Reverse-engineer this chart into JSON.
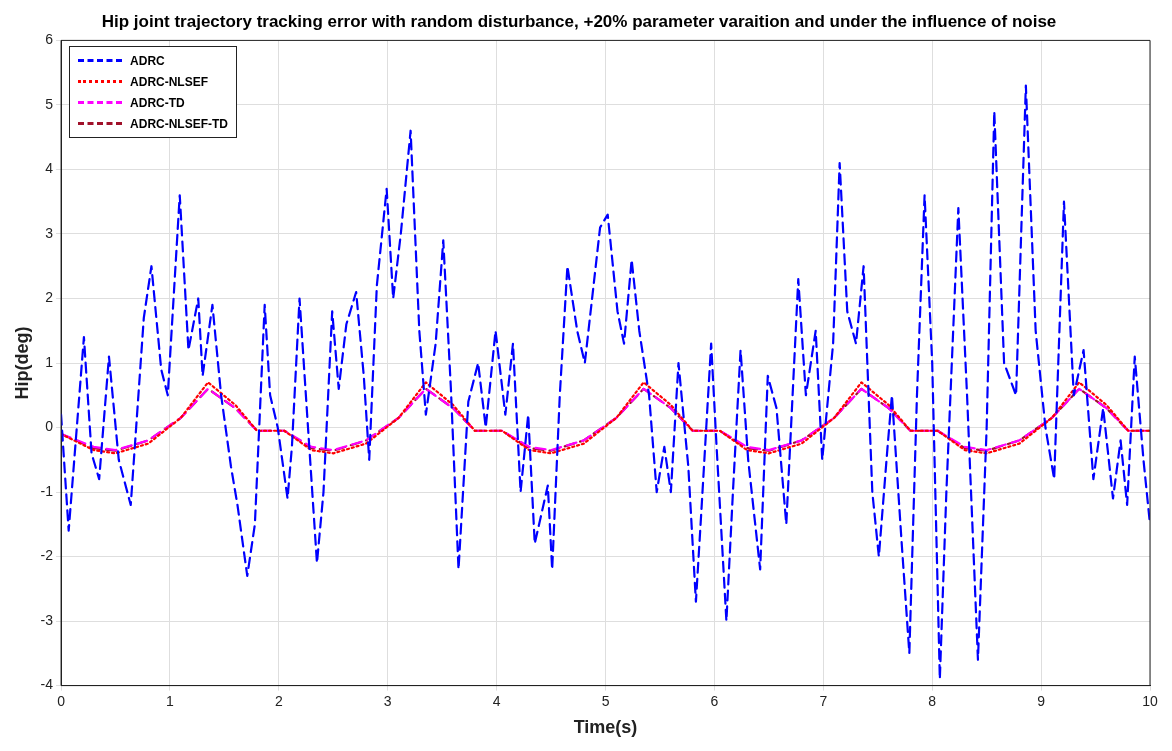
{
  "chart_data": {
    "type": "line",
    "title": "Hip joint trajectory tracking error with random disturbance, +20% parameter varaition and under the influence of noise",
    "xlabel": "Time(s)",
    "ylabel": "Hip(deg)",
    "xlim": [
      0,
      10
    ],
    "xticks": [
      0,
      1,
      2,
      3,
      4,
      5,
      6,
      7,
      8,
      9,
      10
    ],
    "ylim": [
      -4,
      6
    ],
    "yticks": [
      -4,
      -3,
      -2,
      -1,
      0,
      1,
      2,
      3,
      4,
      5,
      6
    ],
    "grid": true,
    "legend": "top left",
    "marker": "none",
    "series": [
      {
        "name": "ADRC",
        "color": "#0000ff",
        "line_style": "dashed",
        "x": [
          0,
          0.07,
          0.21,
          0.28,
          0.35,
          0.44,
          0.53,
          0.64,
          0.76,
          0.83,
          0.92,
          0.98,
          1.09,
          1.17,
          1.26,
          1.3,
          1.39,
          1.47,
          1.56,
          1.62,
          1.71,
          1.78,
          1.87,
          1.92,
          1.99,
          2.08,
          2.12,
          2.19,
          2.26,
          2.35,
          2.41,
          2.49,
          2.55,
          2.62,
          2.71,
          2.78,
          2.83,
          2.9,
          2.99,
          3.05,
          3.12,
          3.21,
          3.29,
          3.35,
          3.44,
          3.51,
          3.58,
          3.65,
          3.74,
          3.83,
          3.9,
          3.99,
          4.08,
          4.15,
          4.22,
          4.29,
          4.35,
          4.47,
          4.51,
          4.58,
          4.65,
          4.74,
          4.81,
          4.95,
          5.02,
          5.11,
          5.17,
          5.24,
          5.31,
          5.4,
          5.47,
          5.54,
          5.6,
          5.67,
          5.76,
          5.83,
          5.88,
          5.97,
          6.02,
          6.11,
          6.17,
          6.24,
          6.31,
          6.42,
          6.49,
          6.57,
          6.66,
          6.77,
          6.84,
          6.93,
          6.99,
          7.09,
          7.15,
          7.22,
          7.3,
          7.37,
          7.45,
          7.51,
          7.59,
          7.63,
          7.72,
          7.79,
          7.86,
          7.93,
          8,
          8.07,
          8.13,
          8.24,
          8.32,
          8.42,
          8.5,
          8.57,
          8.66,
          8.77,
          8.86,
          8.95,
          9.04,
          9.12,
          9.21,
          9.3,
          9.39,
          9.48,
          9.57,
          9.66,
          9.73,
          9.79,
          9.86,
          9.94,
          10
        ],
        "values": [
          0.2,
          -1.6,
          1.4,
          -0.4,
          -0.8,
          1.1,
          -0.5,
          -1.2,
          1.7,
          2.5,
          0.9,
          0.5,
          3.6,
          1.2,
          2,
          0.8,
          1.9,
          0.5,
          -0.6,
          -1.2,
          -2.3,
          -1.5,
          1.9,
          0.5,
          0,
          -1.1,
          -0.3,
          2,
          0.2,
          -2.1,
          -1,
          1.8,
          0.6,
          1.6,
          2.1,
          0.8,
          -0.5,
          2.2,
          3.7,
          2,
          3,
          4.6,
          1.5,
          0.2,
          1.3,
          2.9,
          0.6,
          -2.2,
          0.4,
          1,
          0,
          1.5,
          0.2,
          1.3,
          -1,
          0.2,
          -1.8,
          -0.9,
          -2.2,
          0.5,
          2.5,
          1.5,
          1,
          3.1,
          3.3,
          1.8,
          1.3,
          2.6,
          1.5,
          0.5,
          -1,
          -0.3,
          -1,
          1,
          -0.6,
          -2.7,
          -1.3,
          1.3,
          -0.3,
          -3,
          -1,
          1.2,
          -0.5,
          -2.2,
          0.8,
          0.3,
          -1.5,
          2.3,
          0.5,
          1.5,
          -0.5,
          1.3,
          4.1,
          1.8,
          1.3,
          2.5,
          -1,
          -2,
          -0.3,
          0.5,
          -1.8,
          -3.5,
          0.5,
          3.6,
          1,
          -3.9,
          -1,
          3.4,
          0.5,
          -3.6,
          0,
          4.9,
          1,
          0.5,
          5.3,
          1.5,
          0,
          -0.8,
          3.5,
          0.5,
          1.2,
          -0.8,
          0.3,
          -1.1,
          -0.2,
          -1.2,
          1.1,
          -0.5,
          -1.5
        ]
      },
      {
        "name": "ADRC-NLSEF",
        "color": "#ff0000",
        "line_style": "dotted",
        "x": [
          0,
          0.3,
          0.5,
          0.8,
          1.1,
          1.35,
          1.6,
          1.8,
          2.05,
          2.3,
          2.5,
          2.8,
          3.1,
          3.35,
          3.6,
          3.8,
          4.05,
          4.3,
          4.5,
          4.8,
          5.1,
          5.35,
          5.6,
          5.8,
          6.05,
          6.3,
          6.5,
          6.8,
          7.1,
          7.35,
          7.6,
          7.8,
          8.05,
          8.3,
          8.5,
          8.8,
          9.1,
          9.35,
          9.6,
          9.8,
          10
        ],
        "values": [
          -0.1,
          -0.35,
          -0.4,
          -0.25,
          0.15,
          0.7,
          0.35,
          -0.05,
          -0.05,
          -0.35,
          -0.4,
          -0.25,
          0.15,
          0.7,
          0.35,
          -0.05,
          -0.05,
          -0.35,
          -0.4,
          -0.25,
          0.15,
          0.7,
          0.35,
          -0.05,
          -0.05,
          -0.35,
          -0.4,
          -0.25,
          0.15,
          0.7,
          0.35,
          -0.05,
          -0.05,
          -0.35,
          -0.4,
          -0.25,
          0.15,
          0.7,
          0.35,
          -0.05,
          -0.05
        ]
      },
      {
        "name": "ADRC-TD",
        "color": "#ff00ff",
        "line_style": "dashed",
        "x": [
          0,
          0.3,
          0.5,
          0.8,
          1.1,
          1.35,
          1.6,
          1.8,
          2.05,
          2.3,
          2.5,
          2.8,
          3.1,
          3.35,
          3.6,
          3.8,
          4.05,
          4.3,
          4.5,
          4.8,
          5.1,
          5.35,
          5.6,
          5.8,
          6.05,
          6.3,
          6.5,
          6.8,
          7.1,
          7.35,
          7.6,
          7.8,
          8.05,
          8.3,
          8.5,
          8.8,
          9.1,
          9.35,
          9.6,
          9.8,
          10
        ],
        "values": [
          -0.1,
          -0.3,
          -0.35,
          -0.2,
          0.15,
          0.6,
          0.3,
          -0.05,
          -0.05,
          -0.3,
          -0.35,
          -0.2,
          0.15,
          0.6,
          0.3,
          -0.05,
          -0.05,
          -0.3,
          -0.35,
          -0.2,
          0.15,
          0.6,
          0.3,
          -0.05,
          -0.05,
          -0.3,
          -0.35,
          -0.2,
          0.15,
          0.6,
          0.3,
          -0.05,
          -0.05,
          -0.3,
          -0.35,
          -0.2,
          0.15,
          0.6,
          0.3,
          -0.05,
          -0.05
        ]
      },
      {
        "name": "ADRC-NLSEF-TD",
        "color": "#a0102a",
        "line_style": "dashed",
        "x": [
          0,
          0.3,
          0.5,
          0.8,
          1.1,
          1.35,
          1.6,
          1.8,
          2.05,
          2.3,
          2.5,
          2.8,
          3.1,
          3.35,
          3.6,
          3.8,
          4.05,
          4.3,
          4.5,
          4.8,
          5.1,
          5.35,
          5.6,
          5.8,
          6.05,
          6.3,
          6.5,
          6.8,
          7.1,
          7.35,
          7.6,
          7.8,
          8.05,
          8.3,
          8.5,
          8.8,
          9.1,
          9.35,
          9.6,
          9.8,
          10
        ],
        "values": [
          -0.1,
          -0.32,
          -0.36,
          -0.2,
          0.15,
          0.6,
          0.3,
          -0.05,
          -0.05,
          -0.32,
          -0.36,
          -0.2,
          0.15,
          0.6,
          0.3,
          -0.05,
          -0.05,
          -0.32,
          -0.36,
          -0.2,
          0.15,
          0.6,
          0.3,
          -0.05,
          -0.05,
          -0.32,
          -0.36,
          -0.2,
          0.15,
          0.6,
          0.3,
          -0.05,
          -0.05,
          -0.32,
          -0.36,
          -0.2,
          0.15,
          0.6,
          0.3,
          -0.05,
          -0.05
        ]
      }
    ]
  }
}
